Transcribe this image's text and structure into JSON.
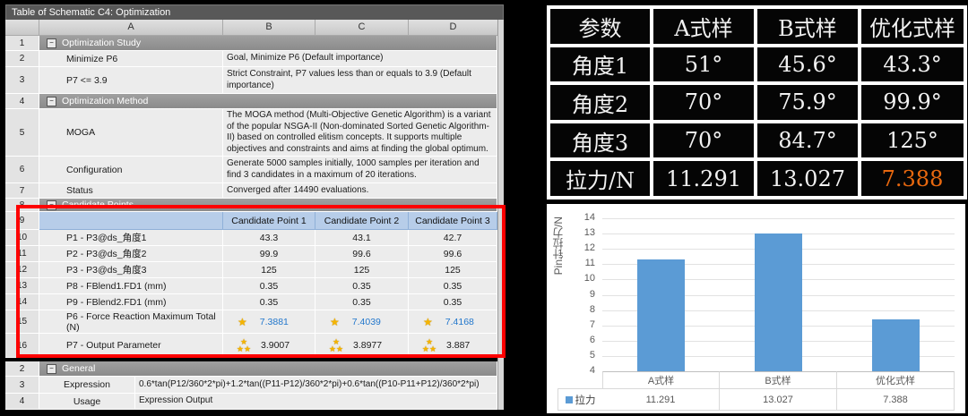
{
  "ansys": {
    "title": "Table of Schematic C4: Optimization",
    "columns": [
      "A",
      "B",
      "C",
      "D"
    ],
    "rows": [
      {
        "num": "1",
        "type": "section",
        "label": "Optimization Study"
      },
      {
        "num": "2",
        "type": "pair",
        "label": "Minimize P6",
        "value": "Goal, Minimize P6 (Default importance)"
      },
      {
        "num": "3",
        "type": "pair",
        "label": "P7 <= 3.9",
        "value": "Strict Constraint, P7 values less than or equals to 3.9 (Default importance)"
      },
      {
        "num": "4",
        "type": "section",
        "label": "Optimization Method"
      },
      {
        "num": "5",
        "type": "pair",
        "label": "MOGA",
        "value": "The MOGA method (Multi-Objective Genetic Algorithm) is a variant of the popular NSGA-II (Non-dominated Sorted Genetic Algorithm-II) based on controlled elitism concepts. It supports multiple objectives and constraints and aims at finding the global optimum."
      },
      {
        "num": "6",
        "type": "pair",
        "label": "Configuration",
        "value": "Generate 5000 samples initially, 1000 samples per iteration and find 3 candidates in a maximum of 20 iterations."
      },
      {
        "num": "7",
        "type": "pair",
        "label": "Status",
        "value": "Converged after 14490 evaluations."
      },
      {
        "num": "8",
        "type": "section",
        "label": "Candidate Points"
      },
      {
        "num": "9",
        "type": "cp-header",
        "cells": [
          "Candidate Point 1",
          "Candidate Point 2",
          "Candidate Point 3"
        ]
      },
      {
        "num": "10",
        "type": "values",
        "label": "P1 - P3@ds_角度1",
        "cells": [
          "43.3",
          "43.1",
          "42.7"
        ]
      },
      {
        "num": "11",
        "type": "values",
        "label": "P2 - P3@ds_角度2",
        "cells": [
          "99.9",
          "99.6",
          "99.6"
        ]
      },
      {
        "num": "12",
        "type": "values",
        "label": "P3 - P3@ds_角度3",
        "cells": [
          "125",
          "125",
          "125"
        ]
      },
      {
        "num": "13",
        "type": "values",
        "label": "P8 - FBlend1.FD1 (mm)",
        "cells": [
          "0.35",
          "0.35",
          "0.35"
        ]
      },
      {
        "num": "14",
        "type": "values",
        "label": "P9 - FBlend2.FD1 (mm)",
        "cells": [
          "0.35",
          "0.35",
          "0.35"
        ]
      },
      {
        "num": "15",
        "type": "star1",
        "label": "P6 - Force Reaction Maximum Total (N)",
        "cells": [
          "7.3881",
          "7.4039",
          "7.4168"
        ]
      },
      {
        "num": "16",
        "type": "star3",
        "label": "P7 - Output Parameter",
        "cells": [
          "3.9007",
          "3.8977",
          "3.887"
        ]
      }
    ],
    "general_rows": [
      {
        "num": "2",
        "type": "section",
        "label": "General"
      },
      {
        "num": "3",
        "type": "pair",
        "label": "Expression",
        "value": "0.6*tan(P12/360*2*pi)+1.2*tan((P11-P12)/360*2*pi)+0.6*tan((P10-P11+P12)/360*2*pi)"
      },
      {
        "num": "4",
        "type": "pair",
        "label": "Usage",
        "value": "Expression Output"
      }
    ]
  },
  "compare_table": {
    "headers": [
      "参数",
      "A式样",
      "B式样",
      "优化式样"
    ],
    "rows": [
      [
        "角度1",
        "51°",
        "45.6°",
        "43.3°"
      ],
      [
        "角度2",
        "70°",
        "75.9°",
        "99.9°"
      ],
      [
        "角度3",
        "70°",
        "84.7°",
        "125°"
      ],
      [
        "拉力/N",
        "11.291",
        "13.027",
        "7.388"
      ]
    ],
    "highlight_cell": {
      "row": 3,
      "col": 3,
      "color": "#e8680f"
    }
  },
  "chart_data": {
    "type": "bar",
    "categories": [
      "A式样",
      "B式样",
      "优化式样"
    ],
    "series": [
      {
        "name": "拉力",
        "values": [
          11.291,
          13.027,
          7.388
        ]
      }
    ],
    "data_table_values": [
      "11.291",
      "13.027",
      "7.388"
    ],
    "title": "",
    "xlabel": "",
    "ylabel": "Pin针拉力/N",
    "ylim": [
      4,
      14
    ],
    "ytick_step": 1,
    "grid": true,
    "legend_position": "bottom-left",
    "bar_color": "#5b9bd5"
  }
}
